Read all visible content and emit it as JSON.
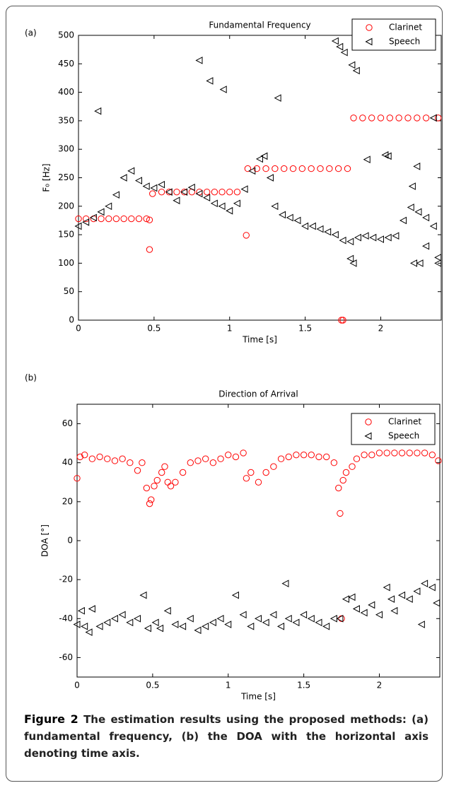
{
  "chart_data": [
    {
      "type": "scatter",
      "panel": "(a)",
      "title": "Fundamental Frequency",
      "x_label": "Time [s]",
      "y_label": "F₀ [Hz]",
      "xlim": [
        0,
        2.4
      ],
      "xticks": [
        0,
        0.5,
        1,
        1.5,
        2
      ],
      "ylim": [
        0,
        500
      ],
      "yticks": [
        0,
        50,
        100,
        150,
        200,
        250,
        300,
        350,
        400,
        450,
        500
      ],
      "legend": "upper right",
      "series": [
        {
          "name": "Clarinet",
          "color": "#ff0000",
          "marker": "circle",
          "x": [
            0,
            0.05,
            0.1,
            0.15,
            0.2,
            0.25,
            0.3,
            0.35,
            0.4,
            0.45,
            0.47,
            0.47,
            0.49,
            0.55,
            0.6,
            0.65,
            0.7,
            0.75,
            0.8,
            0.85,
            0.9,
            0.95,
            1.0,
            1.05,
            1.11,
            1.12,
            1.18,
            1.24,
            1.3,
            1.36,
            1.42,
            1.48,
            1.54,
            1.6,
            1.66,
            1.72,
            1.78,
            1.74,
            1.75,
            1.82,
            1.88,
            1.94,
            2.0,
            2.06,
            2.12,
            2.18,
            2.24,
            2.3,
            2.38
          ],
          "values": [
            178,
            178,
            178,
            178,
            178,
            178,
            178,
            178,
            178,
            178,
            176,
            124,
            222,
            225,
            225,
            225,
            225,
            225,
            225,
            225,
            225,
            225,
            225,
            225,
            149,
            266,
            266,
            266,
            266,
            266,
            266,
            266,
            266,
            266,
            266,
            266,
            266,
            0,
            0,
            355,
            355,
            355,
            355,
            355,
            355,
            355,
            355,
            355,
            355
          ]
        },
        {
          "name": "Speech",
          "color": "#000000",
          "marker": "triangle-left",
          "x": [
            0,
            0.05,
            0.1,
            0.15,
            0.2,
            0.25,
            0.3,
            0.35,
            0.4,
            0.45,
            0.5,
            0.55,
            0.6,
            0.65,
            0.7,
            0.75,
            0.8,
            0.85,
            0.9,
            0.95,
            1.0,
            1.05,
            1.1,
            1.15,
            1.2,
            1.23,
            1.27,
            1.3,
            1.35,
            1.4,
            1.45,
            1.5,
            1.55,
            1.6,
            1.65,
            1.7,
            1.75,
            1.8,
            1.85,
            1.9,
            1.95,
            2.0,
            2.05,
            2.1,
            2.15,
            2.2,
            2.25,
            2.3,
            2.35,
            2.38,
            0.13,
            0.8,
            0.87,
            0.96,
            1.32,
            1.7,
            1.73,
            1.76,
            1.81,
            1.84,
            1.91,
            2.03,
            2.05,
            2.24,
            2.21,
            1.8,
            1.82,
            2.22,
            2.26,
            2.35,
            2.3,
            2.38
          ],
          "values": [
            165,
            172,
            180,
            190,
            200,
            220,
            250,
            262,
            245,
            235,
            232,
            238,
            225,
            210,
            225,
            233,
            222,
            215,
            205,
            200,
            192,
            205,
            230,
            262,
            283,
            288,
            250,
            200,
            185,
            180,
            175,
            165,
            165,
            160,
            155,
            150,
            140,
            138,
            145,
            148,
            145,
            142,
            145,
            148,
            175,
            198,
            190,
            180,
            165,
            100,
            367,
            456,
            420,
            405,
            390,
            490,
            480,
            470,
            448,
            438,
            282,
            290,
            288,
            270,
            235,
            108,
            100,
            100,
            100,
            355,
            130,
            110
          ]
        }
      ]
    },
    {
      "type": "scatter",
      "panel": "(b)",
      "title": "Direction of Arrival",
      "x_label": "Time [s]",
      "y_label": "DOA [°]",
      "xlim": [
        0,
        2.4
      ],
      "xticks": [
        0,
        0.5,
        1,
        1.5,
        2
      ],
      "ylim": [
        -70,
        70
      ],
      "yticks": [
        -60,
        -40,
        -20,
        0,
        20,
        40,
        60
      ],
      "legend": "upper right",
      "series": [
        {
          "name": "Clarinet",
          "color": "#ff0000",
          "marker": "circle",
          "x": [
            0,
            0.02,
            0.05,
            0.1,
            0.15,
            0.2,
            0.25,
            0.3,
            0.35,
            0.4,
            0.43,
            0.46,
            0.48,
            0.49,
            0.51,
            0.53,
            0.56,
            0.58,
            0.6,
            0.62,
            0.65,
            0.7,
            0.75,
            0.8,
            0.85,
            0.9,
            0.95,
            1.0,
            1.05,
            1.1,
            1.12,
            1.15,
            1.2,
            1.25,
            1.3,
            1.35,
            1.4,
            1.45,
            1.5,
            1.55,
            1.6,
            1.65,
            1.7,
            1.73,
            1.74,
            1.76,
            1.78,
            1.82,
            1.85,
            1.9,
            1.95,
            2.0,
            2.05,
            2.1,
            2.15,
            2.2,
            2.25,
            2.3,
            2.35,
            2.39,
            1.75
          ],
          "values": [
            32,
            43,
            44,
            42,
            43,
            42,
            41,
            42,
            40,
            36,
            40,
            27,
            19,
            21,
            28,
            31,
            35,
            38,
            30,
            28,
            30,
            35,
            40,
            41,
            42,
            40,
            42,
            44,
            43,
            45,
            32,
            35,
            30,
            35,
            38,
            42,
            43,
            44,
            44,
            44,
            43,
            43,
            40,
            27,
            14,
            31,
            35,
            38,
            42,
            44,
            44,
            45,
            45,
            45,
            45,
            45,
            45,
            45,
            44,
            41,
            -40
          ]
        },
        {
          "name": "Speech",
          "color": "#000000",
          "marker": "triangle-left",
          "x": [
            0,
            0.03,
            0.05,
            0.08,
            0.1,
            0.15,
            0.2,
            0.25,
            0.3,
            0.35,
            0.4,
            0.44,
            0.47,
            0.52,
            0.55,
            0.6,
            0.65,
            0.7,
            0.75,
            0.8,
            0.85,
            0.9,
            0.95,
            1.0,
            1.05,
            1.1,
            1.15,
            1.2,
            1.25,
            1.3,
            1.35,
            1.38,
            1.4,
            1.45,
            1.5,
            1.55,
            1.6,
            1.65,
            1.7,
            1.74,
            1.78,
            1.82,
            1.85,
            1.9,
            1.95,
            2.0,
            2.05,
            2.08,
            2.1,
            2.15,
            2.2,
            2.25,
            2.28,
            2.3,
            2.35,
            2.38
          ],
          "values": [
            -43,
            -36,
            -44,
            -47,
            -35,
            -44,
            -42,
            -40,
            -38,
            -42,
            -40,
            -28,
            -45,
            -42,
            -45,
            -36,
            -43,
            -44,
            -40,
            -46,
            -44,
            -42,
            -40,
            -43,
            -28,
            -38,
            -44,
            -40,
            -42,
            -38,
            -44,
            -22,
            -40,
            -42,
            -38,
            -40,
            -42,
            -44,
            -40,
            -40,
            -30,
            -29,
            -35,
            -37,
            -33,
            -38,
            -24,
            -30,
            -36,
            -28,
            -30,
            -26,
            -43,
            -22,
            -24,
            -32
          ]
        }
      ]
    }
  ],
  "caption": {
    "label": "Figure 2",
    "text": "The estimation results using the proposed methods: (a) fundamental frequency, (b) the DOA with the horizontal axis denoting time axis."
  }
}
